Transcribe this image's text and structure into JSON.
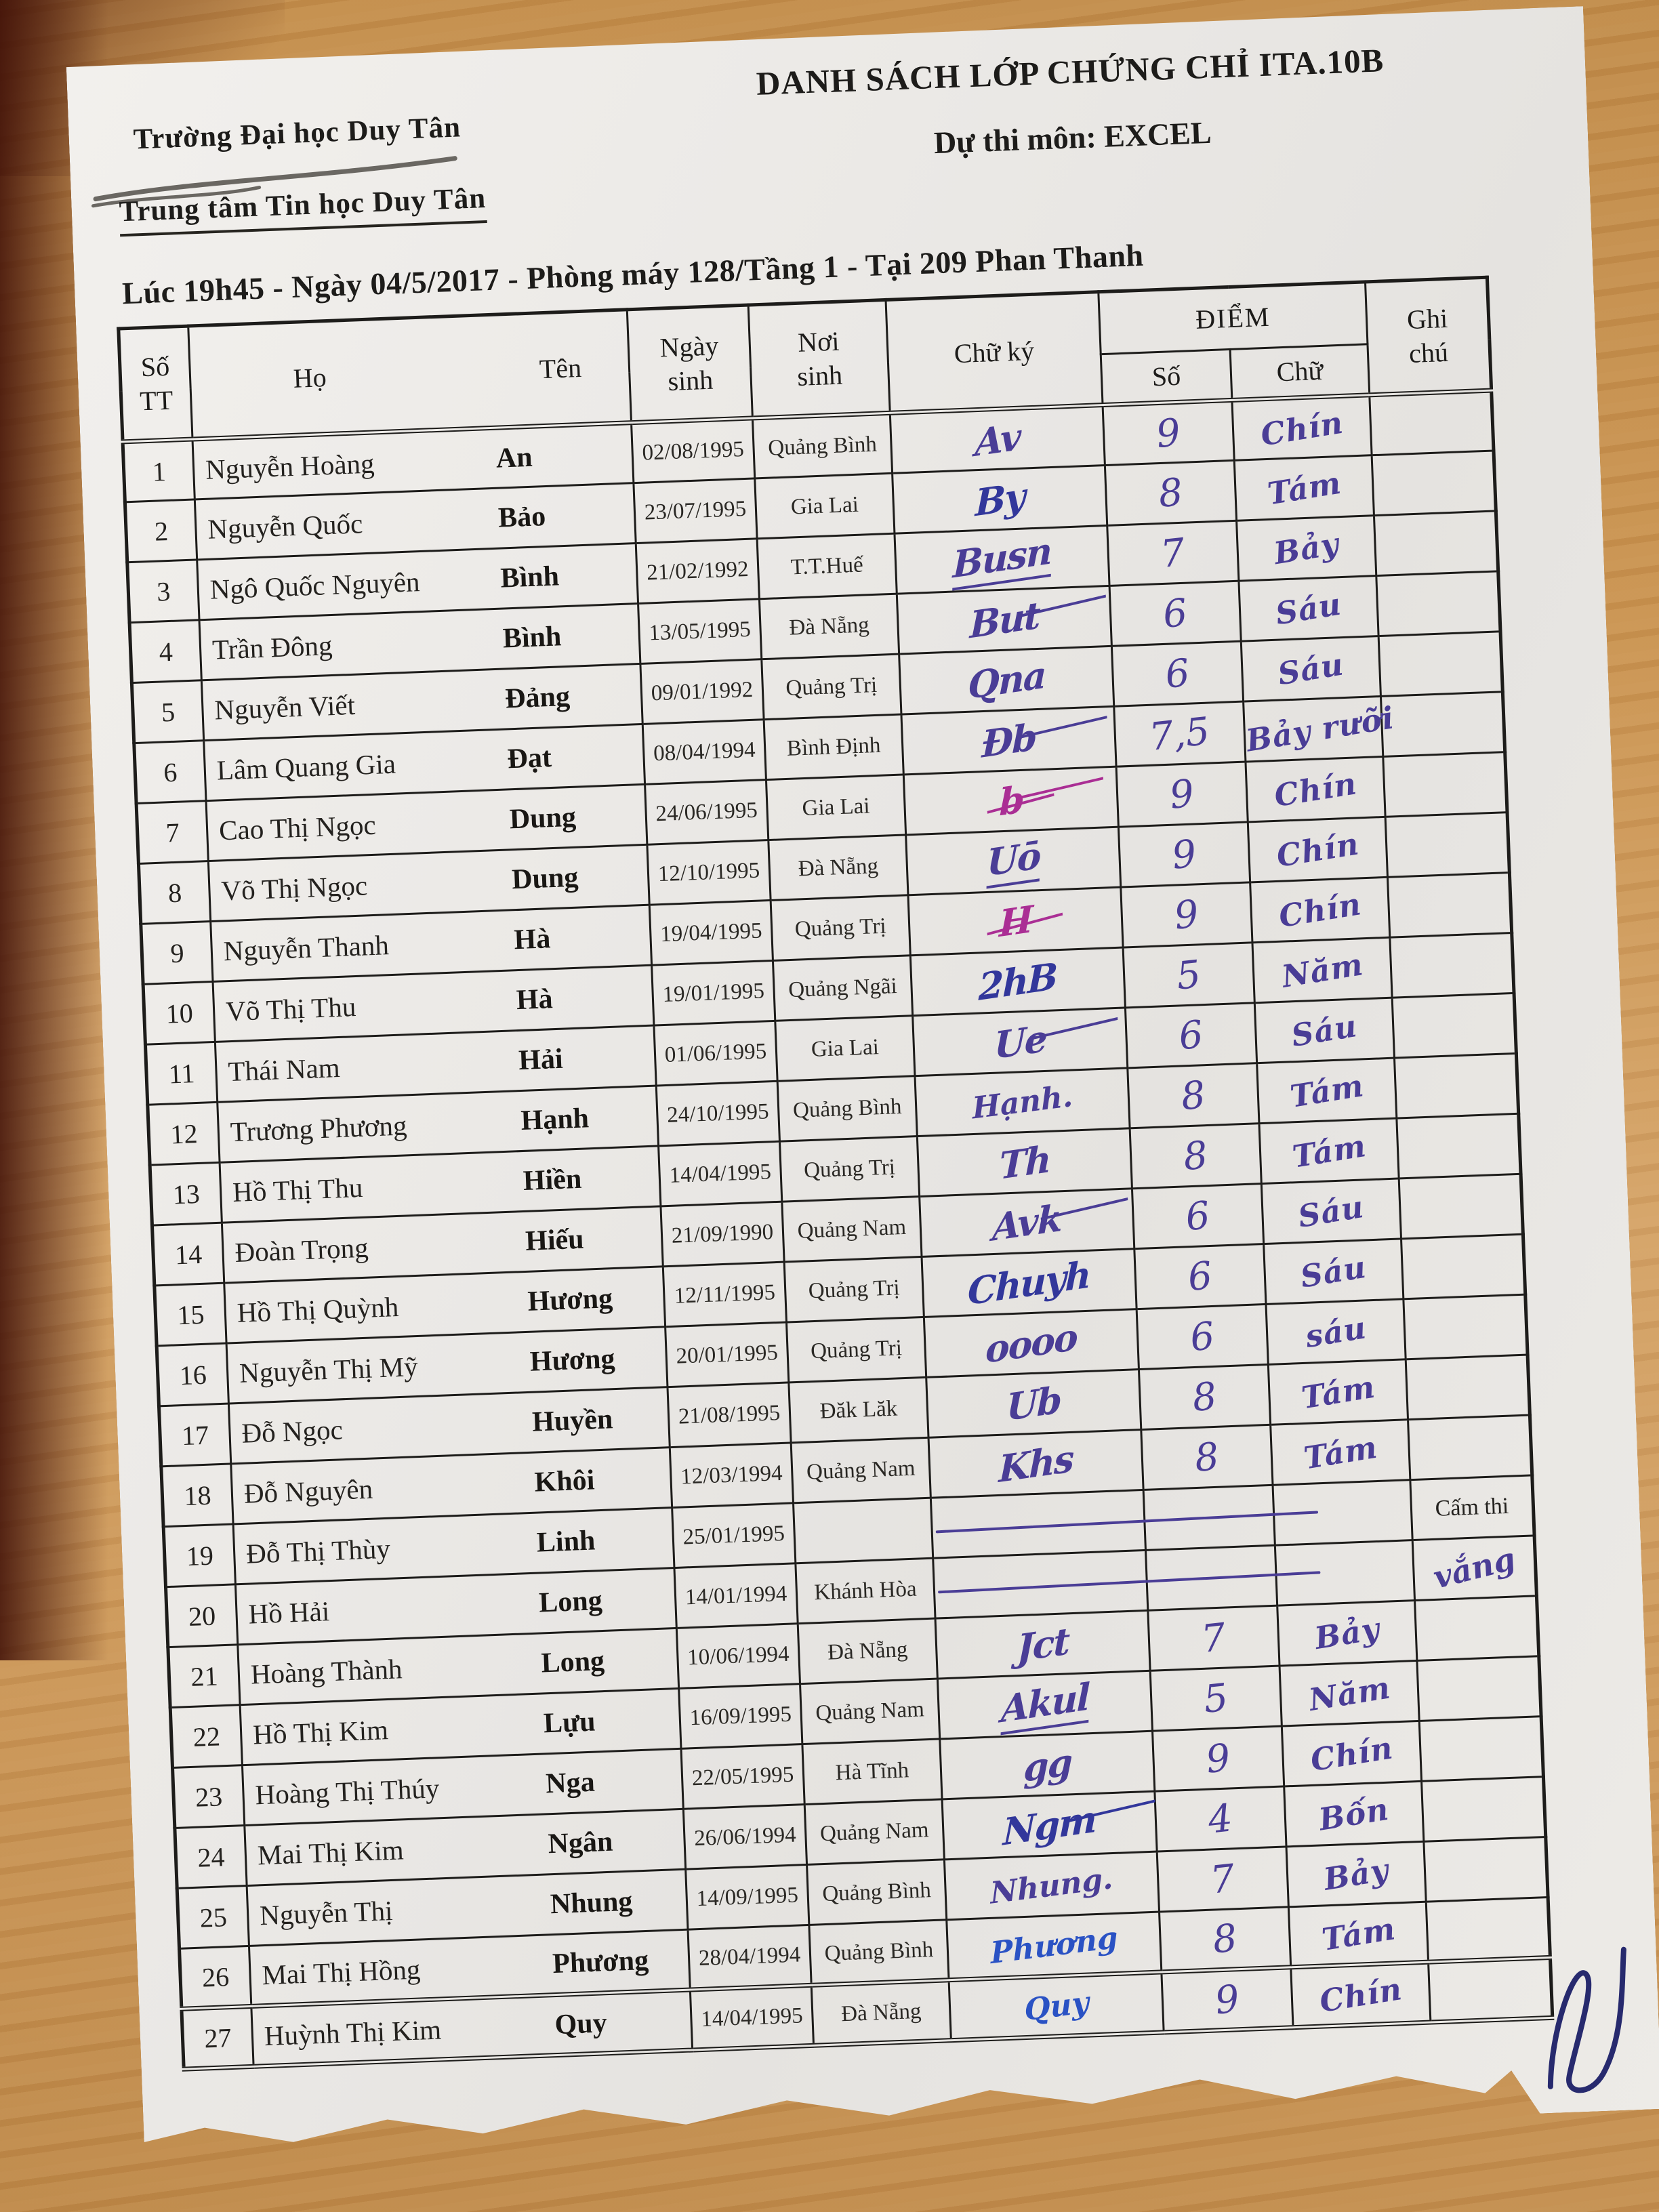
{
  "header": {
    "org_line1": "Trường Đại học Duy Tân",
    "org_line2": "Trung tâm Tin học Duy Tân",
    "title": "DANH SÁCH LỚP CHỨNG CHỈ ITA.10B",
    "subtitle": "Dự thi môn: EXCEL",
    "session": "Lúc 19h45 - Ngày 04/5/2017 - Phòng máy 128/Tầng 1 - Tại 209 Phan Thanh"
  },
  "ink_colors": {
    "violet": "#4a3d96",
    "blue": "#32379b",
    "magenta": "#aa2e94",
    "bright": "#2a52c4",
    "dark": "#272a6e",
    "pencil": "#6a6762"
  },
  "table": {
    "headers": {
      "stt_line1": "Số",
      "stt_line2": "TT",
      "ho": "Họ",
      "ten": "Tên",
      "ngay_sinh_line1": "Ngày",
      "ngay_sinh_line2": "sinh",
      "noi_sinh_line1": "Nơi",
      "noi_sinh_line2": "sinh",
      "chu_ky": "Chữ ký",
      "diem": "ĐIỂM",
      "diem_so": "Số",
      "diem_chu": "Chữ",
      "ghi_chu_line1": "Ghi",
      "ghi_chu_line2": "chú"
    },
    "rows": [
      {
        "stt": "1",
        "ho": "Nguyễn Hoàng",
        "ten": "An",
        "ngay_sinh": "02/08/1995",
        "noi_sinh": "Quảng Bình",
        "chu_ky": {
          "text": "Av",
          "ink": "violet",
          "fx": ""
        },
        "diem_so": "9",
        "diem_chu": "Chín",
        "ghi_chu": {
          "text": "",
          "hand": false
        }
      },
      {
        "stt": "2",
        "ho": "Nguyễn Quốc",
        "ten": "Bảo",
        "ngay_sinh": "23/07/1995",
        "noi_sinh": "Gia Lai",
        "chu_ky": {
          "text": "By",
          "ink": "blue",
          "fx": ""
        },
        "diem_so": "8",
        "diem_chu": "Tám",
        "ghi_chu": {
          "text": "",
          "hand": false
        }
      },
      {
        "stt": "3",
        "ho": "Ngô Quốc Nguyên",
        "ten": "Bình",
        "ngay_sinh": "21/02/1992",
        "noi_sinh": "T.T.Huế",
        "chu_ky": {
          "text": "Busn",
          "ink": "violet",
          "fx": "u"
        },
        "diem_so": "7",
        "diem_chu": "Bảy",
        "ghi_chu": {
          "text": "",
          "hand": false
        }
      },
      {
        "stt": "4",
        "ho": "Trần Đông",
        "ten": "Bình",
        "ngay_sinh": "13/05/1995",
        "noi_sinh": "Đà Nẵng",
        "chu_ky": {
          "text": "But",
          "ink": "violet",
          "fx": "t"
        },
        "diem_so": "6",
        "diem_chu": "Sáu",
        "ghi_chu": {
          "text": "",
          "hand": false
        }
      },
      {
        "stt": "5",
        "ho": "Nguyễn Viết",
        "ten": "Đảng",
        "ngay_sinh": "09/01/1992",
        "noi_sinh": "Quảng Trị",
        "chu_ky": {
          "text": "Qna",
          "ink": "violet",
          "fx": ""
        },
        "diem_so": "6",
        "diem_chu": "Sáu",
        "ghi_chu": {
          "text": "",
          "hand": false
        }
      },
      {
        "stt": "6",
        "ho": "Lâm Quang Gia",
        "ten": "Đạt",
        "ngay_sinh": "08/04/1994",
        "noi_sinh": "Bình Định",
        "chu_ky": {
          "text": "Đb",
          "ink": "violet",
          "fx": "t"
        },
        "diem_so": "7,5",
        "diem_chu": "Bảy rưỡi",
        "ghi_chu": {
          "text": "",
          "hand": false
        }
      },
      {
        "stt": "7",
        "ho": "Cao Thị Ngọc",
        "ten": "Dung",
        "ngay_sinh": "24/06/1995",
        "noi_sinh": "Gia Lai",
        "chu_ky": {
          "text": "b",
          "ink": "magenta",
          "fx": "s t"
        },
        "diem_so": "9",
        "diem_chu": "Chín",
        "ghi_chu": {
          "text": "",
          "hand": false
        }
      },
      {
        "stt": "8",
        "ho": "Võ Thị Ngọc",
        "ten": "Dung",
        "ngay_sinh": "12/10/1995",
        "noi_sinh": "Đà Nẵng",
        "chu_ky": {
          "text": "Uō",
          "ink": "violet",
          "fx": "u"
        },
        "diem_so": "9",
        "diem_chu": "Chín",
        "ghi_chu": {
          "text": "",
          "hand": false
        }
      },
      {
        "stt": "9",
        "ho": "Nguyễn Thanh",
        "ten": "Hà",
        "ngay_sinh": "19/04/1995",
        "noi_sinh": "Quảng Trị",
        "chu_ky": {
          "text": "H",
          "ink": "magenta",
          "fx": "s"
        },
        "diem_so": "9",
        "diem_chu": "Chín",
        "ghi_chu": {
          "text": "",
          "hand": false
        }
      },
      {
        "stt": "10",
        "ho": "Võ Thị Thu",
        "ten": "Hà",
        "ngay_sinh": "19/01/1995",
        "noi_sinh": "Quảng Ngãi",
        "chu_ky": {
          "text": "2hB",
          "ink": "blue",
          "fx": ""
        },
        "diem_so": "5",
        "diem_chu": "Năm",
        "ghi_chu": {
          "text": "",
          "hand": false
        }
      },
      {
        "stt": "11",
        "ho": "Thái Nam",
        "ten": "Hải",
        "ngay_sinh": "01/06/1995",
        "noi_sinh": "Gia Lai",
        "chu_ky": {
          "text": "Ue",
          "ink": "violet",
          "fx": "t"
        },
        "diem_so": "6",
        "diem_chu": "Sáu",
        "ghi_chu": {
          "text": "",
          "hand": false
        }
      },
      {
        "stt": "12",
        "ho": "Trương Phương",
        "ten": "Hạnh",
        "ngay_sinh": "24/10/1995",
        "noi_sinh": "Quảng Bình",
        "chu_ky": {
          "text": "Hạnh.",
          "ink": "violet",
          "fx": "legible"
        },
        "diem_so": "8",
        "diem_chu": "Tám",
        "ghi_chu": {
          "text": "",
          "hand": false
        }
      },
      {
        "stt": "13",
        "ho": "Hồ Thị Thu",
        "ten": "Hiền",
        "ngay_sinh": "14/04/1995",
        "noi_sinh": "Quảng Trị",
        "chu_ky": {
          "text": "Th",
          "ink": "violet",
          "fx": ""
        },
        "diem_so": "8",
        "diem_chu": "Tám",
        "ghi_chu": {
          "text": "",
          "hand": false
        }
      },
      {
        "stt": "14",
        "ho": "Đoàn Trọng",
        "ten": "Hiếu",
        "ngay_sinh": "21/09/1990",
        "noi_sinh": "Quảng Nam",
        "chu_ky": {
          "text": "Avk",
          "ink": "violet",
          "fx": "t"
        },
        "diem_so": "6",
        "diem_chu": "Sáu",
        "ghi_chu": {
          "text": "",
          "hand": false
        }
      },
      {
        "stt": "15",
        "ho": "Hồ Thị Quỳnh",
        "ten": "Hương",
        "ngay_sinh": "12/11/1995",
        "noi_sinh": "Quảng Trị",
        "chu_ky": {
          "text": "Chuyh",
          "ink": "blue",
          "fx": ""
        },
        "diem_so": "6",
        "diem_chu": "Sáu",
        "ghi_chu": {
          "text": "",
          "hand": false
        }
      },
      {
        "stt": "16",
        "ho": "Nguyễn Thị Mỹ",
        "ten": "Hương",
        "ngay_sinh": "20/01/1995",
        "noi_sinh": "Quảng Trị",
        "chu_ky": {
          "text": "oooo",
          "ink": "violet",
          "fx": ""
        },
        "diem_so": "6",
        "diem_chu": "sáu",
        "ghi_chu": {
          "text": "",
          "hand": false
        }
      },
      {
        "stt": "17",
        "ho": "Đỗ Ngọc",
        "ten": "Huyền",
        "ngay_sinh": "21/08/1995",
        "noi_sinh": "Đăk Lăk",
        "chu_ky": {
          "text": "Ub",
          "ink": "violet",
          "fx": ""
        },
        "diem_so": "8",
        "diem_chu": "Tám",
        "ghi_chu": {
          "text": "",
          "hand": false
        }
      },
      {
        "stt": "18",
        "ho": "Đỗ Nguyên",
        "ten": "Khôi",
        "ngay_sinh": "12/03/1994",
        "noi_sinh": "Quảng Nam",
        "chu_ky": {
          "text": "Khs",
          "ink": "violet",
          "fx": ""
        },
        "diem_so": "8",
        "diem_chu": "Tám",
        "ghi_chu": {
          "text": "",
          "hand": false
        }
      },
      {
        "stt": "19",
        "ho": "Đỗ Thị Thùy",
        "ten": "Linh",
        "ngay_sinh": "25/01/1995",
        "noi_sinh": "",
        "chu_ky": {
          "dash": true
        },
        "diem_so": "",
        "diem_chu": "",
        "ghi_chu": {
          "text": "Cấm thi",
          "hand": false
        }
      },
      {
        "stt": "20",
        "ho": "Hồ Hải",
        "ten": "Long",
        "ngay_sinh": "14/01/1994",
        "noi_sinh": "Khánh Hòa",
        "chu_ky": {
          "dash": true
        },
        "diem_so": "",
        "diem_chu": "",
        "ghi_chu": {
          "text": "vắng",
          "hand": true
        }
      },
      {
        "stt": "21",
        "ho": "Hoàng Thành",
        "ten": "Long",
        "ngay_sinh": "10/06/1994",
        "noi_sinh": "Đà Nẵng",
        "chu_ky": {
          "text": "Jct",
          "ink": "violet",
          "fx": ""
        },
        "diem_so": "7",
        "diem_chu": "Bảy",
        "ghi_chu": {
          "text": "",
          "hand": false
        }
      },
      {
        "stt": "22",
        "ho": "Hồ Thị Kim",
        "ten": "Lựu",
        "ngay_sinh": "16/09/1995",
        "noi_sinh": "Quảng Nam",
        "chu_ky": {
          "text": "Akul",
          "ink": "violet",
          "fx": "u"
        },
        "diem_so": "5",
        "diem_chu": "Năm",
        "ghi_chu": {
          "text": "",
          "hand": false
        }
      },
      {
        "stt": "23",
        "ho": "Hoàng Thị Thúy",
        "ten": "Nga",
        "ngay_sinh": "22/05/1995",
        "noi_sinh": "Hà Tĩnh",
        "chu_ky": {
          "text": "gg",
          "ink": "violet",
          "fx": ""
        },
        "diem_so": "9",
        "diem_chu": "Chín",
        "ghi_chu": {
          "text": "",
          "hand": false
        }
      },
      {
        "stt": "24",
        "ho": "Mai Thị Kim",
        "ten": "Ngân",
        "ngay_sinh": "26/06/1994",
        "noi_sinh": "Quảng Nam",
        "chu_ky": {
          "text": "Ngm",
          "ink": "blue",
          "fx": "t"
        },
        "diem_so": "4",
        "diem_chu": "Bốn",
        "ghi_chu": {
          "text": "",
          "hand": false
        }
      },
      {
        "stt": "25",
        "ho": "Nguyễn Thị",
        "ten": "Nhung",
        "ngay_sinh": "14/09/1995",
        "noi_sinh": "Quảng Bình",
        "chu_ky": {
          "text": "Nhung.",
          "ink": "violet",
          "fx": "legible"
        },
        "diem_so": "7",
        "diem_chu": "Bảy",
        "ghi_chu": {
          "text": "",
          "hand": false
        }
      },
      {
        "stt": "26",
        "ho": "Mai Thị Hồng",
        "ten": "Phương",
        "ngay_sinh": "28/04/1994",
        "noi_sinh": "Quảng Bình",
        "chu_ky": {
          "text": "Phương",
          "ink": "bright",
          "fx": "legible"
        },
        "diem_so": "8",
        "diem_chu": "Tám",
        "ghi_chu": {
          "text": "",
          "hand": false
        }
      },
      {
        "stt": "27",
        "ho": "Huỳnh Thị Kim",
        "ten": "Quy",
        "ngay_sinh": "14/04/1995",
        "noi_sinh": "Đà Nẵng",
        "chu_ky": {
          "text": "Quy",
          "ink": "bright",
          "fx": "legible"
        },
        "diem_so": "9",
        "diem_chu": "Chín",
        "ghi_chu": {
          "text": "",
          "hand": false
        }
      }
    ]
  }
}
